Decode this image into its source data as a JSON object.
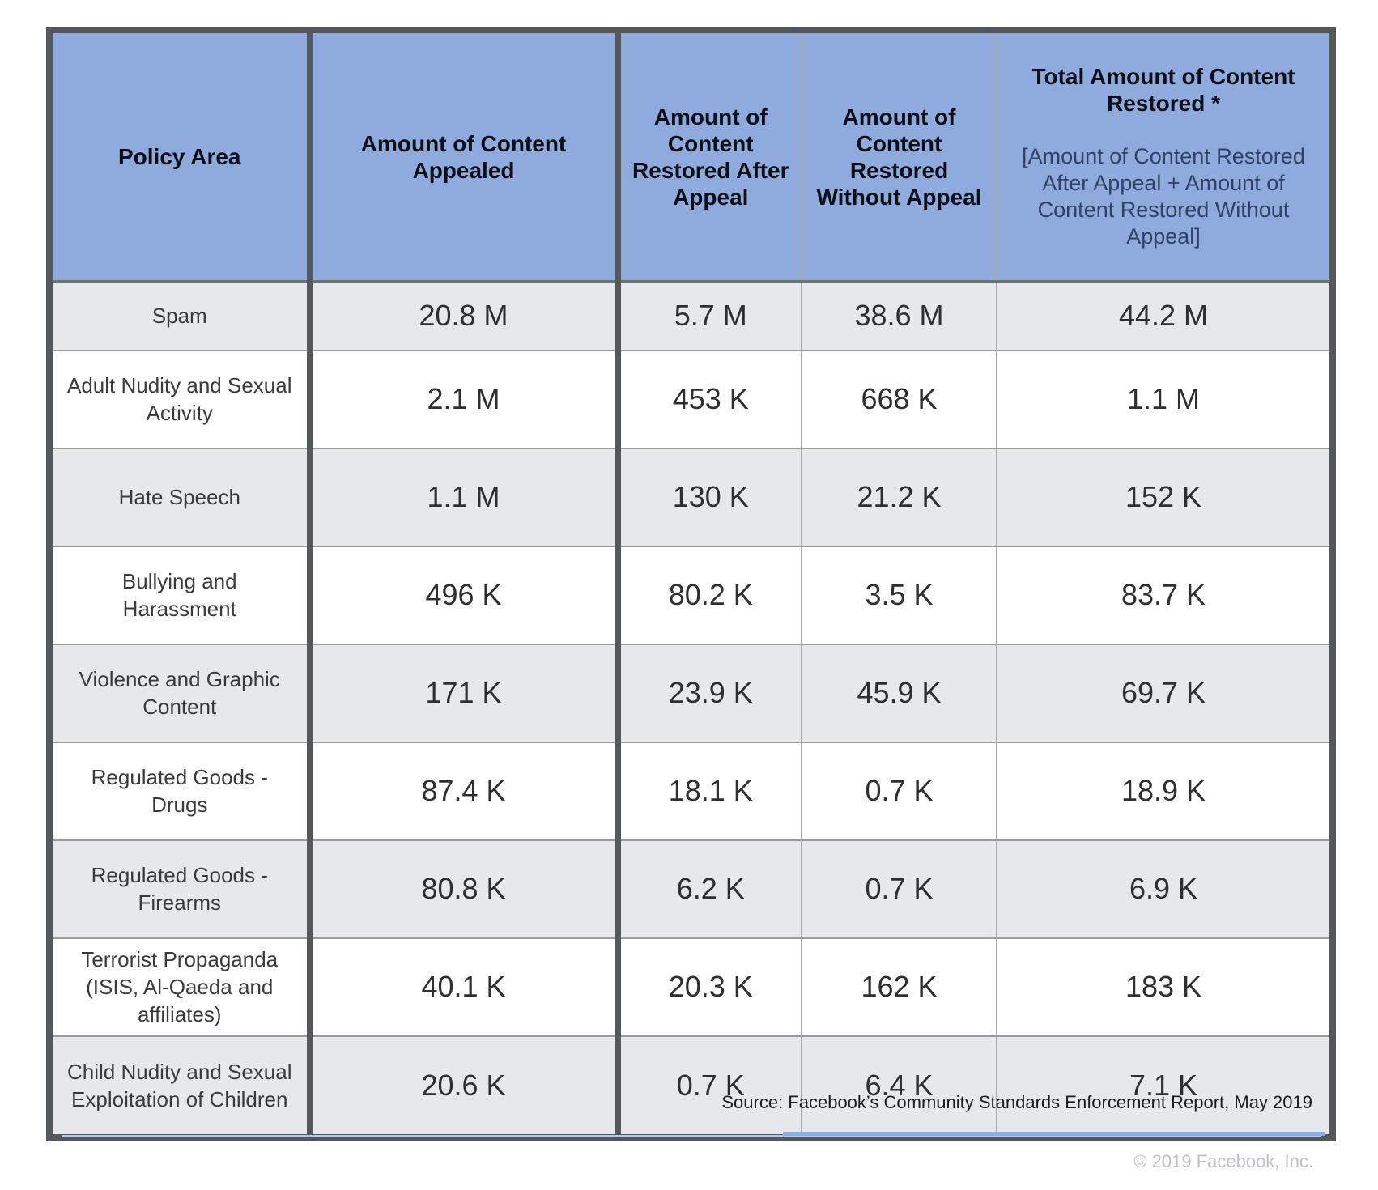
{
  "table": {
    "columns": [
      {
        "label": "Policy Area"
      },
      {
        "label": "Amount of Content\nAppealed"
      },
      {
        "label": "Amount of\nContent\nRestored After\nAppeal"
      },
      {
        "label": "Amount of\nContent\nRestored\nWithout Appeal"
      },
      {
        "label": "Total Amount of Content\nRestored *",
        "note": "[Amount of Content Restored\nAfter Appeal + Amount of\nContent Restored Without\nAppeal]"
      }
    ],
    "rows": [
      {
        "policy": "Spam",
        "appealed": "20.8 M",
        "after": "5.7 M",
        "without": "38.6 M",
        "total": "44.2 M"
      },
      {
        "policy": "Adult Nudity and Sexual\nActivity",
        "appealed": "2.1 M",
        "after": "453 K",
        "without": "668 K",
        "total": "1.1 M"
      },
      {
        "policy": "Hate Speech",
        "appealed": "1.1 M",
        "after": "130 K",
        "without": "21.2 K",
        "total": "152 K"
      },
      {
        "policy": "Bullying and\nHarassment",
        "appealed": "496 K",
        "after": "80.2 K",
        "without": "3.5 K",
        "total": "83.7 K"
      },
      {
        "policy": "Violence and Graphic\nContent",
        "appealed": "171 K",
        "after": "23.9 K",
        "without": "45.9 K",
        "total": "69.7 K"
      },
      {
        "policy": "Regulated Goods -\nDrugs",
        "appealed": "87.4 K",
        "after": "18.1 K",
        "without": "0.7 K",
        "total": "18.9 K"
      },
      {
        "policy": "Regulated Goods -\nFirearms",
        "appealed": "80.8 K",
        "after": "6.2 K",
        "without": "0.7 K",
        "total": "6.9 K"
      },
      {
        "policy": "Terrorist Propaganda\n(ISIS, Al-Qaeda and\naffiliates)",
        "appealed": "40.1 K",
        "after": "20.3 K",
        "without": "162 K",
        "total": "183 K"
      },
      {
        "policy": "Child Nudity and Sexual\nExploitation of Children",
        "appealed": "20.6 K",
        "after": "0.7 K",
        "without": "6.4 K",
        "total": "7.1 K"
      }
    ]
  },
  "footer": {
    "source": "Source: Facebook’s Community Standards Enforcement Report, May 2019",
    "copyright": "© 2019 Facebook, Inc."
  },
  "colors": {
    "header_bg": "#8faadc",
    "row_alt_bg": "#e7e8ea",
    "row_bg": "#ffffff",
    "border_thick": "#54585a",
    "border_thin": "#9b9b9b",
    "header_note_text": "#2e4166",
    "divider_light": "#b6c8e8",
    "divider_dark": "#8cadde",
    "copyright_text": "#bec1c6"
  },
  "chart_data": {
    "type": "table",
    "title": "",
    "columns": [
      "Policy Area",
      "Amount of Content Appealed",
      "Amount of Content Restored After Appeal",
      "Amount of Content Restored Without Appeal",
      "Total Amount of Content Restored * [Amount of Content Restored After Appeal + Amount of Content Restored Without Appeal]"
    ],
    "rows": [
      [
        "Spam",
        "20.8 M",
        "5.7 M",
        "38.6 M",
        "44.2 M"
      ],
      [
        "Adult Nudity and Sexual Activity",
        "2.1 M",
        "453 K",
        "668 K",
        "1.1 M"
      ],
      [
        "Hate Speech",
        "1.1 M",
        "130 K",
        "21.2 K",
        "152 K"
      ],
      [
        "Bullying and Harassment",
        "496 K",
        "80.2 K",
        "3.5 K",
        "83.7 K"
      ],
      [
        "Violence and Graphic Content",
        "171 K",
        "23.9 K",
        "45.9 K",
        "69.7 K"
      ],
      [
        "Regulated Goods - Drugs",
        "87.4 K",
        "18.1 K",
        "0.7 K",
        "18.9 K"
      ],
      [
        "Regulated Goods - Firearms",
        "80.8 K",
        "6.2 K",
        "0.7 K",
        "6.9 K"
      ],
      [
        "Terrorist Propaganda (ISIS, Al-Qaeda and affiliates)",
        "40.1 K",
        "20.3 K",
        "162 K",
        "183 K"
      ],
      [
        "Child Nudity and Sexual Exploitation of Children",
        "20.6 K",
        "0.7 K",
        "6.4 K",
        "7.1 K"
      ]
    ],
    "source": "Source: Facebook’s Community Standards Enforcement Report, May 2019"
  }
}
